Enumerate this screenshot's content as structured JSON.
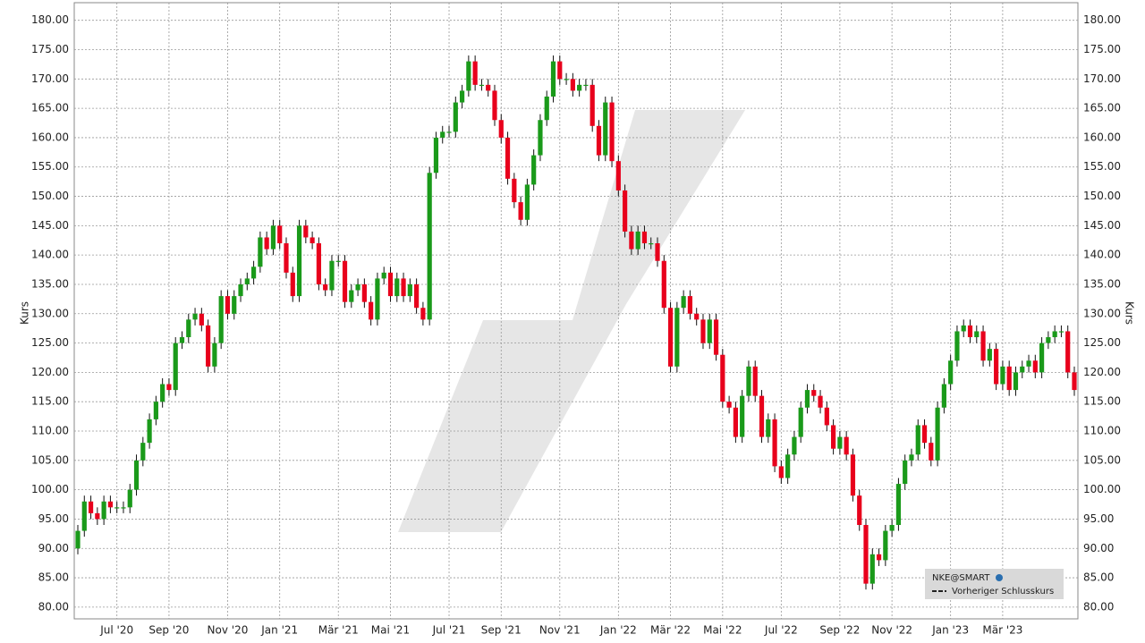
{
  "chart_data": {
    "type": "candlestick",
    "y_label": "Kurs",
    "legend": {
      "symbol": "NKE@SMART",
      "previous_close": "Vorheriger Schlusskurs",
      "corner": "lower-right"
    },
    "up_color": "#1a9a1a",
    "down_color": "#e8001c",
    "grid": true,
    "ylim": [
      78,
      183
    ],
    "yticks": [
      {
        "value": 80,
        "label": "80.00"
      },
      {
        "value": 85,
        "label": "85.00"
      },
      {
        "value": 90,
        "label": "90.00"
      },
      {
        "value": 95,
        "label": "95.00"
      },
      {
        "value": 100,
        "label": "100.00"
      },
      {
        "value": 105,
        "label": "105.00"
      },
      {
        "value": 110,
        "label": "110.00"
      },
      {
        "value": 115,
        "label": "115.00"
      },
      {
        "value": 120,
        "label": "120.00"
      },
      {
        "value": 125,
        "label": "125.00"
      },
      {
        "value": 130,
        "label": "130.00"
      },
      {
        "value": 135,
        "label": "135.00"
      },
      {
        "value": 140,
        "label": "140.00"
      },
      {
        "value": 145,
        "label": "145.00"
      },
      {
        "value": 150,
        "label": "150.00"
      },
      {
        "value": 155,
        "label": "155.00"
      },
      {
        "value": 160,
        "label": "160.00"
      },
      {
        "value": 165,
        "label": "165.00"
      },
      {
        "value": 170,
        "label": "170.00"
      },
      {
        "value": 175,
        "label": "175.00"
      },
      {
        "value": 180,
        "label": "180.00"
      }
    ],
    "categories": [
      null,
      null,
      null,
      null,
      null,
      null,
      "Jul '20",
      null,
      null,
      null,
      null,
      null,
      null,
      null,
      "Sep '20",
      null,
      null,
      null,
      null,
      null,
      null,
      null,
      null,
      "Nov '20",
      null,
      null,
      null,
      null,
      null,
      null,
      null,
      "Jan '21",
      null,
      null,
      null,
      null,
      null,
      null,
      null,
      null,
      "Mär '21",
      null,
      null,
      null,
      null,
      null,
      null,
      null,
      "Mai '21",
      null,
      null,
      null,
      null,
      null,
      null,
      null,
      null,
      "Jul '21",
      null,
      null,
      null,
      null,
      null,
      null,
      null,
      "Sep '21",
      null,
      null,
      null,
      null,
      null,
      null,
      null,
      null,
      "Nov '21",
      null,
      null,
      null,
      null,
      null,
      null,
      null,
      null,
      "Jan '22",
      null,
      null,
      null,
      null,
      null,
      null,
      null,
      "Mär '22",
      null,
      null,
      null,
      null,
      null,
      null,
      null,
      "Mai '22",
      null,
      null,
      null,
      null,
      null,
      null,
      null,
      null,
      "Jul '22",
      null,
      null,
      null,
      null,
      null,
      null,
      null,
      null,
      "Sep '22",
      null,
      null,
      null,
      null,
      null,
      null,
      null,
      "Nov '22",
      null,
      null,
      null,
      null,
      null,
      null,
      null,
      null,
      "Jan '23",
      null,
      null,
      null,
      null,
      null,
      null,
      null,
      "Mär '23",
      null,
      null,
      null,
      null,
      null,
      null,
      null,
      null,
      null,
      null,
      null
    ],
    "open": [
      90,
      93,
      98,
      96,
      95,
      98,
      97,
      97,
      97,
      100,
      105,
      108,
      112,
      115,
      118,
      117,
      125,
      126,
      129,
      130,
      128,
      121,
      125,
      133,
      130,
      133,
      135,
      136,
      138,
      143,
      141,
      145,
      142,
      137,
      133,
      145,
      143,
      142,
      135,
      134,
      139,
      139,
      132,
      134,
      135,
      132,
      129,
      136,
      137,
      133,
      136,
      133,
      135,
      131,
      129,
      154,
      160,
      161,
      161,
      166,
      168,
      173,
      169,
      169,
      168,
      163,
      160,
      153,
      149,
      146,
      152,
      157,
      163,
      167,
      173,
      170,
      170,
      168,
      169,
      169,
      162,
      157,
      166,
      156,
      151,
      144,
      141,
      144,
      142,
      142,
      139,
      131,
      121,
      131,
      133,
      130,
      129,
      125,
      129,
      123,
      115,
      114,
      109,
      116,
      121,
      116,
      109,
      112,
      104,
      102,
      106,
      109,
      114,
      117,
      116,
      114,
      111,
      107,
      109,
      106,
      99,
      94,
      84,
      89,
      88,
      93,
      94,
      101,
      105,
      106,
      111,
      108,
      105,
      114,
      118,
      122,
      127,
      128,
      126,
      127,
      122,
      124,
      118,
      121,
      117,
      120,
      121,
      122,
      120,
      125,
      126,
      127,
      127,
      120
    ],
    "high": [
      94,
      99,
      99,
      97,
      99,
      99,
      98,
      98,
      101,
      106,
      109,
      113,
      116,
      119,
      119,
      126,
      127,
      130,
      131,
      131,
      129,
      126,
      134,
      134,
      134,
      136,
      137,
      139,
      144,
      144,
      146,
      146,
      143,
      138,
      146,
      146,
      144,
      143,
      136,
      140,
      140,
      140,
      135,
      136,
      136,
      133,
      137,
      138,
      138,
      137,
      137,
      136,
      136,
      132,
      155,
      161,
      162,
      162,
      167,
      169,
      174,
      174,
      170,
      170,
      169,
      164,
      161,
      154,
      150,
      153,
      158,
      164,
      168,
      174,
      174,
      171,
      171,
      170,
      170,
      170,
      163,
      167,
      167,
      157,
      152,
      145,
      145,
      145,
      143,
      143,
      140,
      132,
      132,
      134,
      134,
      131,
      130,
      130,
      130,
      124,
      116,
      115,
      117,
      122,
      122,
      117,
      113,
      113,
      105,
      107,
      110,
      115,
      118,
      118,
      117,
      115,
      112,
      110,
      110,
      107,
      100,
      95,
      90,
      90,
      94,
      95,
      102,
      106,
      107,
      112,
      112,
      109,
      115,
      119,
      123,
      128,
      129,
      129,
      128,
      128,
      125,
      125,
      122,
      122,
      121,
      122,
      123,
      123,
      126,
      127,
      128,
      128,
      128,
      121
    ],
    "low": [
      89,
      92,
      95,
      94,
      94,
      96,
      96,
      96,
      96,
      99,
      104,
      107,
      111,
      114,
      116,
      116,
      124,
      125,
      128,
      127,
      120,
      120,
      124,
      129,
      129,
      132,
      134,
      135,
      137,
      140,
      140,
      141,
      136,
      132,
      132,
      142,
      141,
      134,
      133,
      133,
      138,
      131,
      131,
      133,
      131,
      128,
      128,
      135,
      132,
      132,
      132,
      132,
      130,
      128,
      128,
      153,
      159,
      160,
      160,
      165,
      167,
      168,
      168,
      167,
      162,
      159,
      152,
      148,
      145,
      145,
      151,
      156,
      162,
      166,
      169,
      169,
      167,
      167,
      168,
      161,
      156,
      156,
      155,
      150,
      143,
      140,
      140,
      141,
      141,
      138,
      130,
      120,
      120,
      130,
      129,
      128,
      124,
      124,
      122,
      114,
      113,
      108,
      108,
      115,
      115,
      108,
      108,
      103,
      101,
      101,
      105,
      108,
      113,
      115,
      113,
      110,
      106,
      106,
      105,
      98,
      93,
      83,
      83,
      87,
      87,
      92,
      93,
      100,
      104,
      105,
      107,
      104,
      104,
      113,
      117,
      121,
      126,
      125,
      125,
      121,
      121,
      117,
      117,
      116,
      116,
      119,
      120,
      119,
      119,
      124,
      125,
      126,
      119,
      116
    ],
    "close": [
      93,
      98,
      96,
      95,
      98,
      97,
      97,
      97,
      100,
      105,
      108,
      112,
      115,
      118,
      117,
      125,
      126,
      129,
      130,
      128,
      121,
      125,
      133,
      130,
      133,
      135,
      136,
      138,
      143,
      141,
      145,
      142,
      137,
      133,
      145,
      143,
      142,
      135,
      134,
      139,
      139,
      132,
      134,
      135,
      132,
      129,
      136,
      137,
      133,
      136,
      133,
      135,
      131,
      129,
      154,
      160,
      161,
      161,
      166,
      168,
      173,
      169,
      169,
      168,
      163,
      160,
      153,
      149,
      146,
      152,
      157,
      163,
      167,
      173,
      170,
      170,
      168,
      169,
      169,
      162,
      157,
      166,
      156,
      151,
      144,
      141,
      144,
      142,
      142,
      139,
      131,
      121,
      131,
      133,
      130,
      129,
      125,
      129,
      123,
      115,
      114,
      109,
      116,
      121,
      116,
      109,
      112,
      104,
      102,
      106,
      109,
      114,
      117,
      116,
      114,
      111,
      107,
      109,
      106,
      99,
      94,
      84,
      89,
      88,
      93,
      94,
      101,
      105,
      106,
      111,
      108,
      105,
      114,
      118,
      122,
      127,
      128,
      126,
      127,
      122,
      124,
      118,
      121,
      117,
      120,
      121,
      122,
      120,
      125,
      126,
      127,
      127,
      120,
      117
    ]
  }
}
